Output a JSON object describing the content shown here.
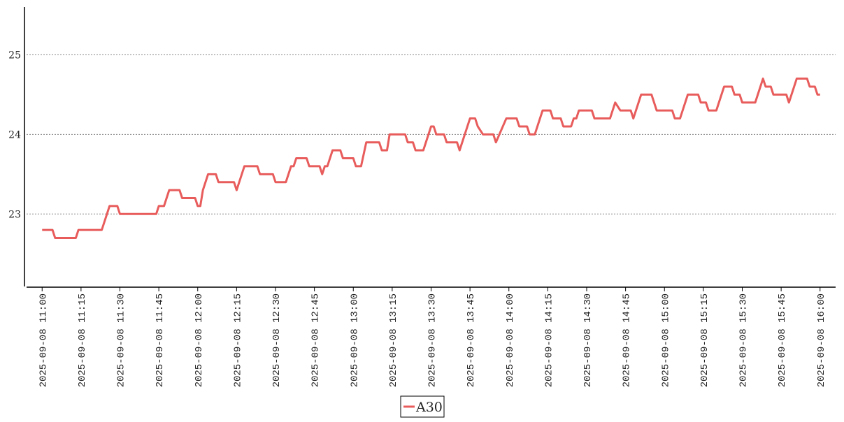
{
  "chart_data": {
    "type": "line",
    "x": [
      "2025-09-08 11:00",
      "2025-09-08 11:04",
      "2025-09-08 11:05",
      "2025-09-08 11:13",
      "2025-09-08 11:14",
      "2025-09-08 11:23",
      "2025-09-08 11:25",
      "2025-09-08 11:26",
      "2025-09-08 11:29",
      "2025-09-08 11:30",
      "2025-09-08 11:44",
      "2025-09-08 11:45",
      "2025-09-08 11:47",
      "2025-09-08 11:49",
      "2025-09-08 11:53",
      "2025-09-08 11:54",
      "2025-09-08 11:59",
      "2025-09-08 12:00",
      "2025-09-08 12:01",
      "2025-09-08 12:02",
      "2025-09-08 12:04",
      "2025-09-08 12:07",
      "2025-09-08 12:08",
      "2025-09-08 12:14",
      "2025-09-08 12:15",
      "2025-09-08 12:18",
      "2025-09-08 12:23",
      "2025-09-08 12:24",
      "2025-09-08 12:29",
      "2025-09-08 12:30",
      "2025-09-08 12:34",
      "2025-09-08 12:36",
      "2025-09-08 12:37",
      "2025-09-08 12:38",
      "2025-09-08 12:42",
      "2025-09-08 12:43",
      "2025-09-08 12:47",
      "2025-09-08 12:48",
      "2025-09-08 12:49",
      "2025-09-08 12:50",
      "2025-09-08 12:52",
      "2025-09-08 12:55",
      "2025-09-08 12:56",
      "2025-09-08 13:00",
      "2025-09-08 13:01",
      "2025-09-08 13:03",
      "2025-09-08 13:05",
      "2025-09-08 13:10",
      "2025-09-08 13:11",
      "2025-09-08 13:13",
      "2025-09-08 13:14",
      "2025-09-08 13:20",
      "2025-09-08 13:21",
      "2025-09-08 13:23",
      "2025-09-08 13:24",
      "2025-09-08 13:27",
      "2025-09-08 13:30",
      "2025-09-08 13:31",
      "2025-09-08 13:32",
      "2025-09-08 13:35",
      "2025-09-08 13:36",
      "2025-09-08 13:40",
      "2025-09-08 13:41",
      "2025-09-08 13:43",
      "2025-09-08 13:45",
      "2025-09-08 13:47",
      "2025-09-08 13:48",
      "2025-09-08 13:50",
      "2025-09-08 13:54",
      "2025-09-08 13:55",
      "2025-09-08 13:59",
      "2025-09-08 14:03",
      "2025-09-08 14:04",
      "2025-09-08 14:07",
      "2025-09-08 14:08",
      "2025-09-08 14:10",
      "2025-09-08 14:13",
      "2025-09-08 14:16",
      "2025-09-08 14:17",
      "2025-09-08 14:20",
      "2025-09-08 14:21",
      "2025-09-08 14:24",
      "2025-09-08 14:25",
      "2025-09-08 14:26",
      "2025-09-08 14:27",
      "2025-09-08 14:32",
      "2025-09-08 14:33",
      "2025-09-08 14:39",
      "2025-09-08 14:41",
      "2025-09-08 14:43",
      "2025-09-08 14:47",
      "2025-09-08 14:48",
      "2025-09-08 14:51",
      "2025-09-08 14:55",
      "2025-09-08 14:56",
      "2025-09-08 14:57",
      "2025-09-08 15:03",
      "2025-09-08 15:04",
      "2025-09-08 15:06",
      "2025-09-08 15:09",
      "2025-09-08 15:13",
      "2025-09-08 15:14",
      "2025-09-08 15:16",
      "2025-09-08 15:17",
      "2025-09-08 15:20",
      "2025-09-08 15:23",
      "2025-09-08 15:26",
      "2025-09-08 15:27",
      "2025-09-08 15:29",
      "2025-09-08 15:30",
      "2025-09-08 15:35",
      "2025-09-08 15:38",
      "2025-09-08 15:39",
      "2025-09-08 15:41",
      "2025-09-08 15:42",
      "2025-09-08 15:47",
      "2025-09-08 15:48",
      "2025-09-08 15:51",
      "2025-09-08 15:55",
      "2025-09-08 15:56",
      "2025-09-08 15:58",
      "2025-09-08 15:59",
      "2025-09-08 16:00"
    ],
    "series": [
      {
        "name": "A30",
        "color": "#e85c5c",
        "values": [
          22.8,
          22.8,
          22.7,
          22.7,
          22.8,
          22.8,
          23.0,
          23.1,
          23.1,
          23.0,
          23.0,
          23.1,
          23.1,
          23.3,
          23.3,
          23.2,
          23.2,
          23.1,
          23.1,
          23.3,
          23.5,
          23.5,
          23.4,
          23.4,
          23.3,
          23.6,
          23.6,
          23.5,
          23.5,
          23.4,
          23.4,
          23.6,
          23.6,
          23.7,
          23.7,
          23.6,
          23.6,
          23.5,
          23.6,
          23.6,
          23.8,
          23.8,
          23.7,
          23.7,
          23.6,
          23.6,
          23.9,
          23.9,
          23.8,
          23.8,
          24.0,
          24.0,
          23.9,
          23.9,
          23.8,
          23.8,
          24.1,
          24.1,
          24.0,
          24.0,
          23.9,
          23.9,
          23.8,
          24.0,
          24.2,
          24.2,
          24.1,
          24.0,
          24.0,
          23.9,
          24.2,
          24.2,
          24.1,
          24.1,
          24.0,
          24.0,
          24.3,
          24.3,
          24.2,
          24.2,
          24.1,
          24.1,
          24.2,
          24.2,
          24.3,
          24.3,
          24.2,
          24.2,
          24.4,
          24.3,
          24.3,
          24.2,
          24.5,
          24.5,
          24.4,
          24.3,
          24.3,
          24.2,
          24.2,
          24.5,
          24.5,
          24.4,
          24.4,
          24.3,
          24.3,
          24.6,
          24.6,
          24.5,
          24.5,
          24.4,
          24.4,
          24.7,
          24.6,
          24.6,
          24.5,
          24.5,
          24.4,
          24.7,
          24.7,
          24.6,
          24.6,
          24.5,
          24.5
        ]
      }
    ],
    "xlim": [
      "2025-09-08 10:54",
      "2025-09-08 16:06"
    ],
    "xticks": [
      "2025-09-08 11:00",
      "2025-09-08 11:15",
      "2025-09-08 11:30",
      "2025-09-08 11:45",
      "2025-09-08 12:00",
      "2025-09-08 12:15",
      "2025-09-08 12:30",
      "2025-09-08 12:45",
      "2025-09-08 13:00",
      "2025-09-08 13:15",
      "2025-09-08 13:30",
      "2025-09-08 13:45",
      "2025-09-08 14:00",
      "2025-09-08 14:15",
      "2025-09-08 14:30",
      "2025-09-08 14:45",
      "2025-09-08 15:00",
      "2025-09-08 15:15",
      "2025-09-08 15:30",
      "2025-09-08 15:45",
      "2025-09-08 16:00"
    ],
    "ylim": [
      22.09,
      25.6
    ],
    "yticks": [
      23,
      24,
      25
    ],
    "grid": true,
    "legend": "bottom"
  }
}
